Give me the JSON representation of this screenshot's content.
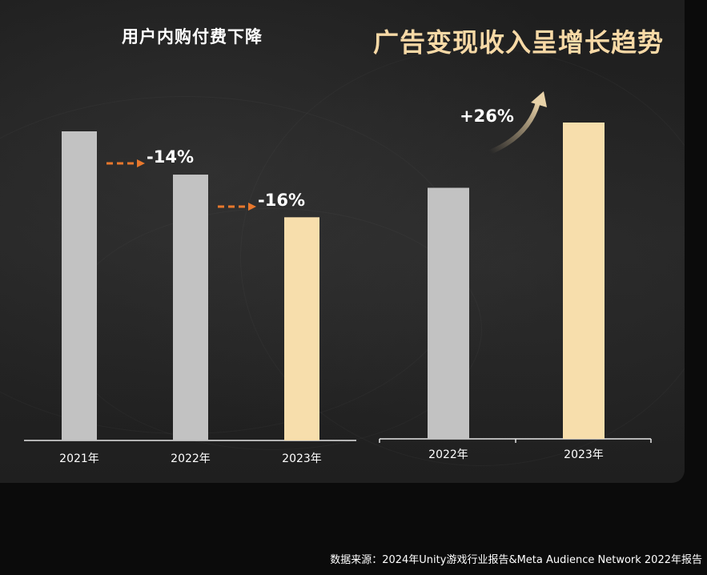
{
  "chart_data": [
    {
      "type": "bar",
      "title": "用户内购付费下降",
      "categories": [
        "2021年",
        "2022年",
        "2023年"
      ],
      "values": [
        100,
        86,
        72.2
      ],
      "ylim": [
        0,
        100
      ],
      "colors": [
        "#c2c2c2",
        "#c2c2c2",
        "#f7deac"
      ],
      "annotations": [
        {
          "from": "2021年",
          "to": "2022年",
          "text": "-14%",
          "arrow": "dashed-right",
          "arrow_color": "#e8782d"
        },
        {
          "from": "2022年",
          "to": "2023年",
          "text": "-16%",
          "arrow": "dashed-right",
          "arrow_color": "#e8782d"
        }
      ]
    },
    {
      "type": "bar",
      "title": "广告变现收入呈增长趋势",
      "categories": [
        "2022年",
        "2023年"
      ],
      "values": [
        100,
        126
      ],
      "ylim": [
        0,
        126
      ],
      "colors": [
        "#c2c2c2",
        "#f7deac"
      ],
      "annotations": [
        {
          "from": "2022年",
          "to": "2023年",
          "text": "+26%",
          "arrow": "curved-up",
          "arrow_color": "#c9b18a"
        }
      ]
    }
  ],
  "footer": {
    "source": "数据来源：2024年Unity游戏行业报告&Meta Audience Network 2022年报告"
  }
}
